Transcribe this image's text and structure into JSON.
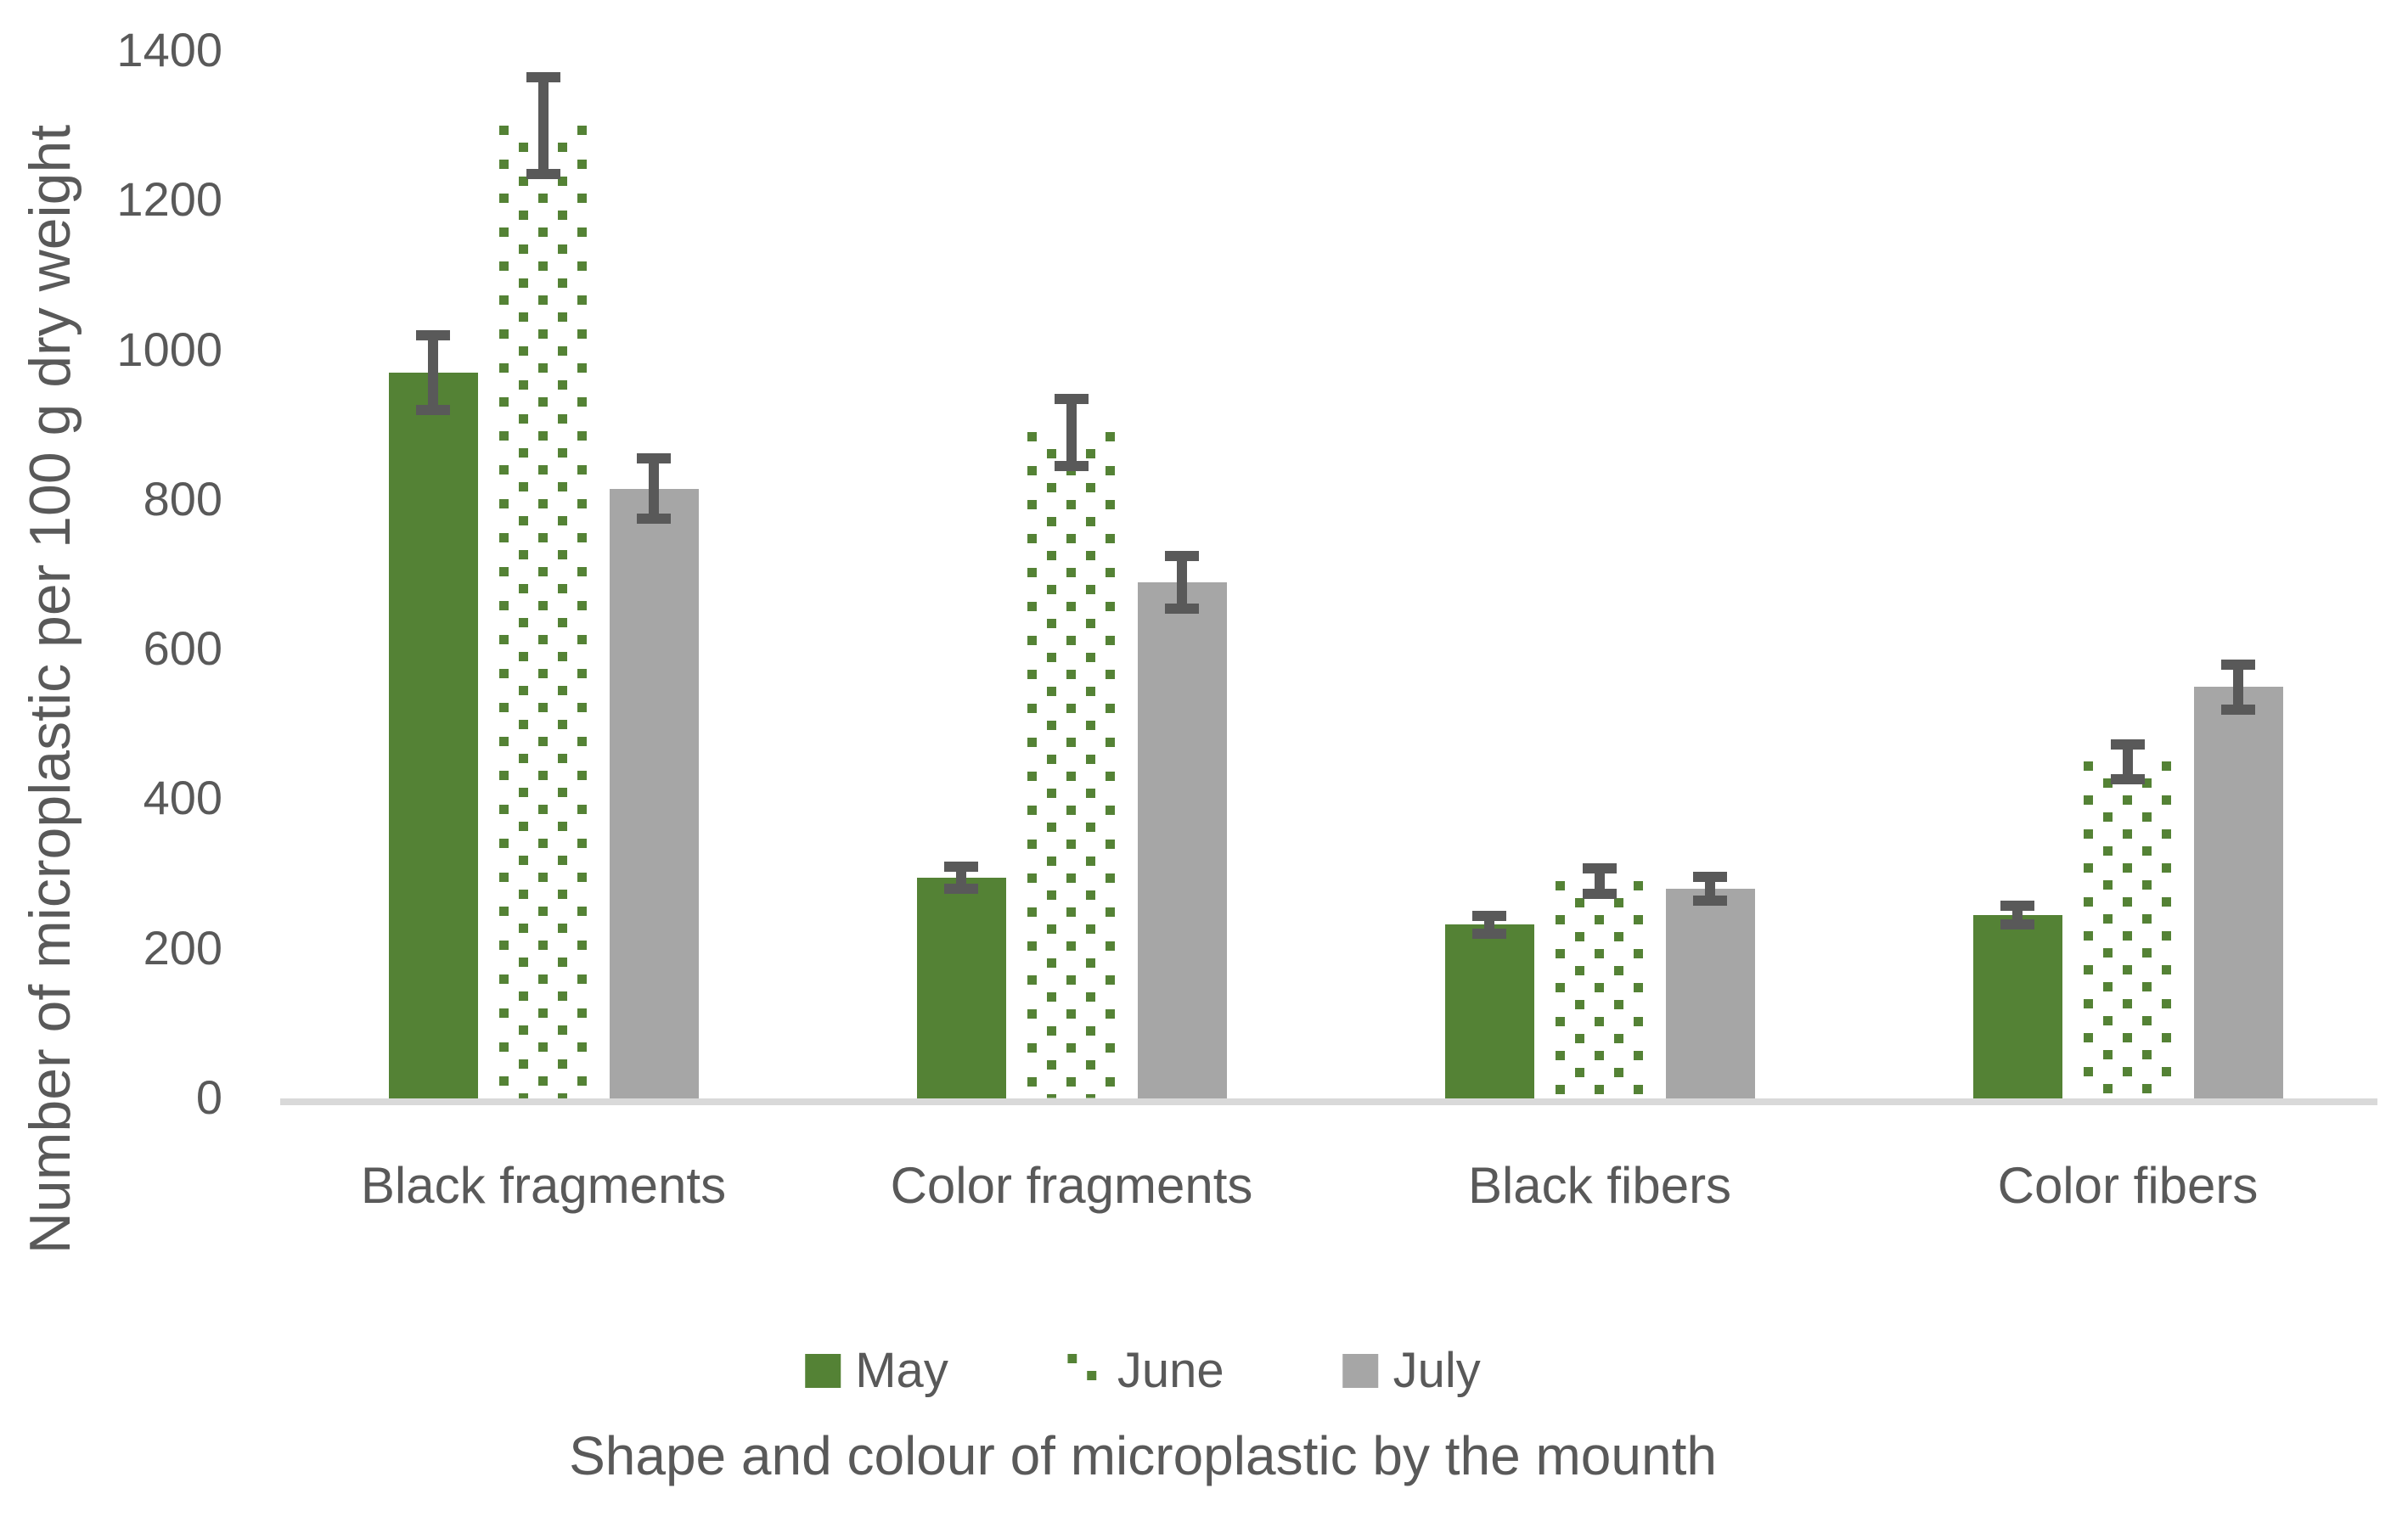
{
  "figure": {
    "background": "#ffffff"
  },
  "chart_data": {
    "type": "bar",
    "title": "",
    "xlabel": "Shape and colour of microplastic by the mounth",
    "ylabel": "Number of microplastic per 100 g dry weight",
    "categories": [
      "Black fragments",
      "Color fragments",
      "Black fibers",
      "Color fibers"
    ],
    "series": [
      {
        "name": "May",
        "fill": "solid",
        "color": "#548235",
        "values": [
          970,
          295,
          232,
          245
        ],
        "errors": [
          50,
          15,
          12,
          13
        ]
      },
      {
        "name": "June",
        "fill": "dots",
        "color": "#548235",
        "pattern_background": "#ffffff",
        "values": [
          1300,
          890,
          290,
          450
        ],
        "errors": [
          65,
          45,
          17,
          23
        ]
      },
      {
        "name": "July",
        "fill": "solid",
        "color": "#A6A6A6",
        "values": [
          815,
          690,
          280,
          550
        ],
        "errors": [
          40,
          35,
          16,
          30
        ]
      }
    ],
    "ylim": [
      0,
      1400
    ],
    "yticks": [
      0,
      200,
      400,
      600,
      800,
      1000,
      1200,
      1400
    ],
    "grid": false,
    "error_bars": true,
    "legend_position": "bottom",
    "colors": {
      "error_bar": "#595959",
      "axis_line": "#D9D9D9",
      "text": "#595959"
    }
  }
}
